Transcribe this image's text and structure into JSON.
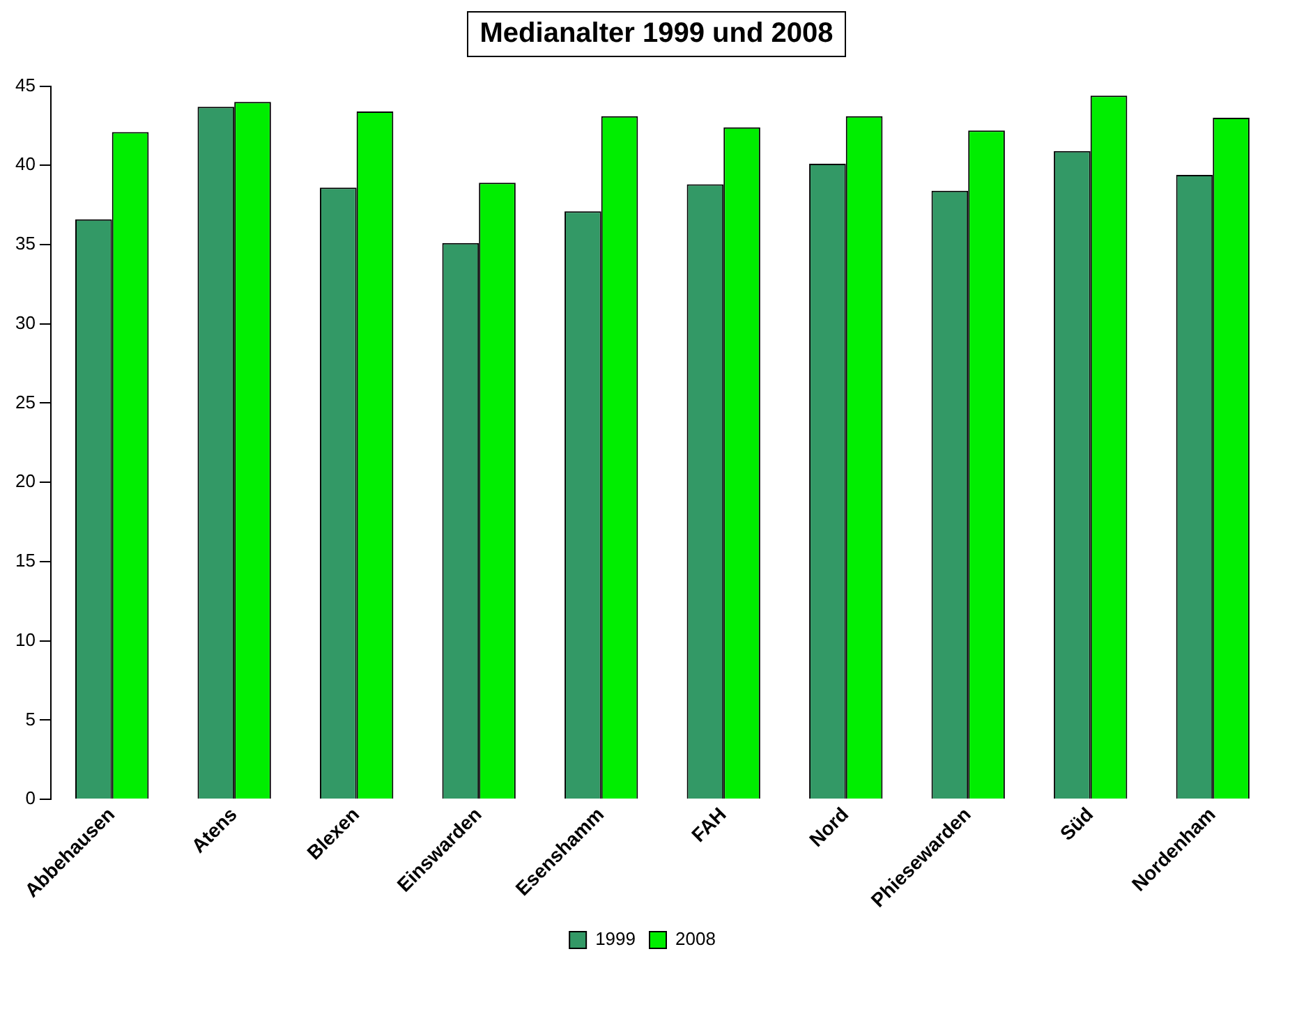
{
  "chart_data": {
    "type": "bar",
    "title": "Medianalter 1999 und 2008",
    "categories": [
      "Abbehausen",
      "Atens",
      "Blexen",
      "Einswarden",
      "Esenshamm",
      "FAH",
      "Nord",
      "Phiesewarden",
      "Süd",
      "Nordenham"
    ],
    "series": [
      {
        "name": "1999",
        "color": "#339966",
        "values": [
          36.6,
          43.7,
          38.6,
          35.1,
          37.1,
          38.8,
          40.1,
          38.4,
          40.9,
          39.4
        ]
      },
      {
        "name": "2008",
        "color": "#00ee00",
        "values": [
          42.1,
          44.0,
          43.4,
          38.9,
          43.1,
          42.4,
          43.1,
          42.2,
          44.4,
          43.0
        ]
      }
    ],
    "ylim": [
      0,
      45
    ],
    "yticks": [
      0,
      5,
      10,
      15,
      20,
      25,
      30,
      35,
      40,
      45
    ],
    "grid": false,
    "legend": "bottom"
  }
}
